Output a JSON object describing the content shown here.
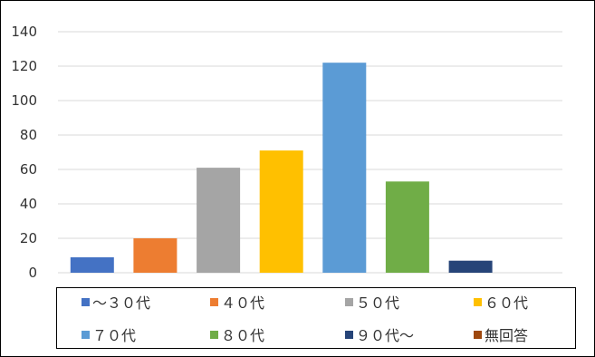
{
  "chart_data": {
    "type": "bar",
    "categories": [
      "～３０代",
      "４０代",
      "５０代",
      "６０代",
      "７０代",
      "８０代",
      "９０代～",
      "無回答"
    ],
    "values": [
      9,
      20,
      61,
      71,
      122,
      53,
      7,
      0
    ],
    "colors": [
      "#4472C4",
      "#ED7D31",
      "#A5A5A5",
      "#FFC000",
      "#5B9BD5",
      "#70AD47",
      "#264478",
      "#9E480E"
    ],
    "title": "",
    "xlabel": "",
    "ylabel": "",
    "ylim": [
      0,
      140
    ],
    "yticks": [
      "0",
      "20",
      "40",
      "60",
      "80",
      "100",
      "120",
      "140"
    ],
    "grid": true,
    "legend_position": "bottom"
  }
}
